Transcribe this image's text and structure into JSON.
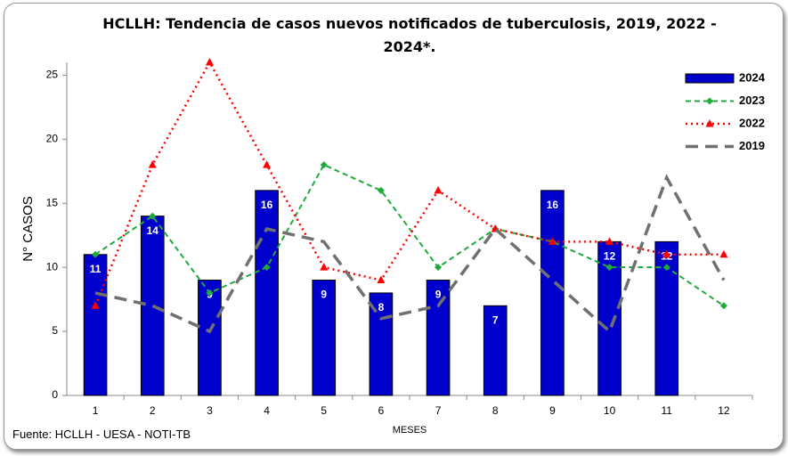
{
  "chart_data": {
    "type": "bar",
    "title": "HCLLH: Tendencia de casos nuevos notificados de tuberculosis, 2019, 2022 - 2024*.",
    "x_label": "MESES",
    "y_label": "N° CASOS",
    "source": "Fuente: HCLLH - UESA - NOTI-TB",
    "categories": [
      1,
      2,
      3,
      4,
      5,
      6,
      7,
      8,
      9,
      10,
      11,
      12
    ],
    "ylim": [
      0,
      26
    ],
    "yticks": [
      0,
      5,
      10,
      15,
      20,
      25
    ],
    "legend": "top-right",
    "series": [
      {
        "name": "2024",
        "type": "bar",
        "color": "#0000cc",
        "values": [
          11,
          14,
          9,
          16,
          9,
          8,
          9,
          7,
          16,
          12,
          12,
          null
        ]
      },
      {
        "name": "2023",
        "type": "line",
        "color": "#1faa3c",
        "dash": "dashed",
        "marker": "diamond",
        "values": [
          11,
          14,
          8,
          10,
          18,
          16,
          10,
          13,
          12,
          10,
          10,
          7
        ]
      },
      {
        "name": "2022",
        "type": "line",
        "color": "#ff0000",
        "dash": "dotted",
        "marker": "triangle",
        "values": [
          7,
          18,
          26,
          18,
          10,
          9,
          16,
          13,
          12,
          12,
          11,
          11
        ]
      },
      {
        "name": "2019",
        "type": "line",
        "color": "#707070",
        "dash": "long-dash",
        "marker": "none",
        "values": [
          8,
          7,
          5,
          13,
          12,
          6,
          7,
          13,
          9,
          5,
          17,
          9
        ]
      }
    ]
  }
}
